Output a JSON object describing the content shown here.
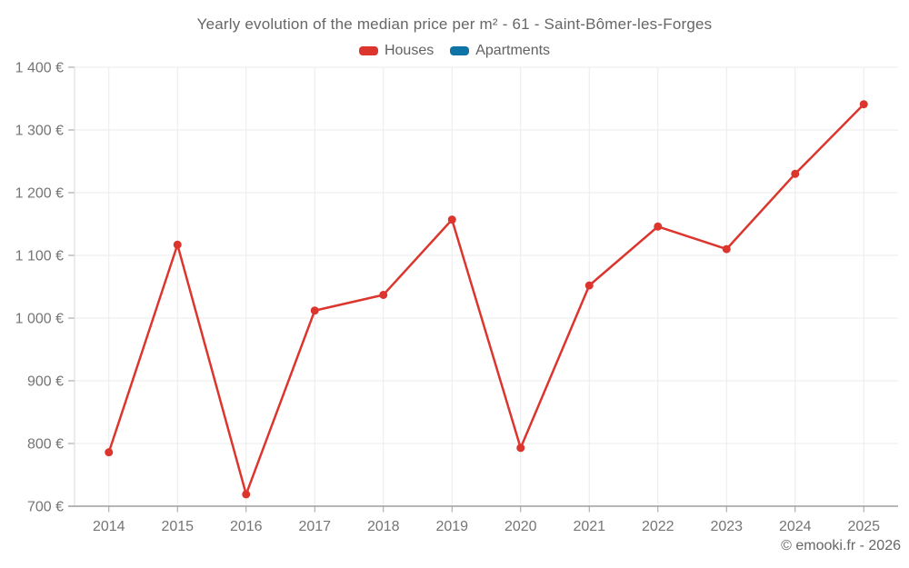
{
  "chart_data": {
    "type": "line",
    "title": "Yearly evolution of the median price per m² - 61 - Saint-Bômer-les-Forges",
    "categories": [
      "2014",
      "2015",
      "2016",
      "2017",
      "2018",
      "2019",
      "2020",
      "2021",
      "2022",
      "2023",
      "2024",
      "2025"
    ],
    "series": [
      {
        "name": "Houses",
        "color": "#dc352e",
        "values": [
          786,
          1117,
          719,
          1012,
          1037,
          1157,
          793,
          1052,
          1146,
          1110,
          1230,
          1341
        ]
      },
      {
        "name": "Apartments",
        "color": "#0f74a5",
        "values": []
      }
    ],
    "ylim": [
      700,
      1400
    ],
    "yticks": {
      "values": [
        700,
        800,
        900,
        1000,
        1100,
        1200,
        1300,
        1400
      ],
      "labels": [
        "700 €",
        "800 €",
        "900 €",
        "1 000 €",
        "1 100 €",
        "1 200 €",
        "1 300 €",
        "1 400 €"
      ]
    },
    "grid": true,
    "legend_position": "top",
    "ylabel": "",
    "xlabel": ""
  },
  "footer": {
    "credit": "© emooki.fr - 2026"
  },
  "colors": {
    "houses": "#dc352e",
    "apartments": "#0f74a5",
    "gridline": "#ebebeb",
    "axis_line": "#9e9e9e",
    "y_axis_line": "#d9d9d9",
    "tick_label": "#757575",
    "title_text": "#666666"
  }
}
